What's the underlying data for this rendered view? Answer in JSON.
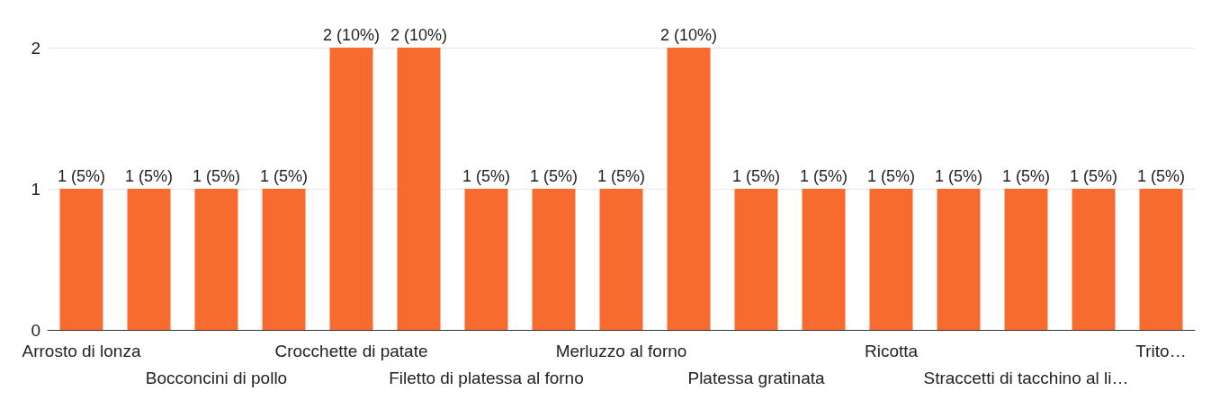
{
  "chart_data": {
    "type": "bar",
    "categories": [
      "Arrosto di lonza",
      null,
      "Bocconcini di pollo",
      null,
      "Crocchette di patate",
      null,
      "Filetto di platessa al forno",
      null,
      "Merluzzo al forno",
      null,
      "Platessa gratinata",
      null,
      "Ricotta",
      null,
      "Straccetti di tacchino al li…",
      null,
      "Trito…"
    ],
    "values": [
      1,
      1,
      1,
      1,
      2,
      2,
      1,
      1,
      1,
      2,
      1,
      1,
      1,
      1,
      1,
      1,
      1
    ],
    "value_labels": [
      "1 (5%)",
      "1 (5%)",
      "1 (5%)",
      "1 (5%)",
      "2 (10%)",
      "2 (10%)",
      "1 (5%)",
      "1 (5%)",
      "1 (5%)",
      "2 (10%)",
      "1 (5%)",
      "1 (5%)",
      "1 (5%)",
      "1 (5%)",
      "1 (5%)",
      "1 (5%)",
      "1 (5%)"
    ],
    "color": "#f76b2f",
    "ylim": [
      0,
      2
    ],
    "yticks": [
      0,
      1,
      2
    ],
    "grid": "y"
  }
}
